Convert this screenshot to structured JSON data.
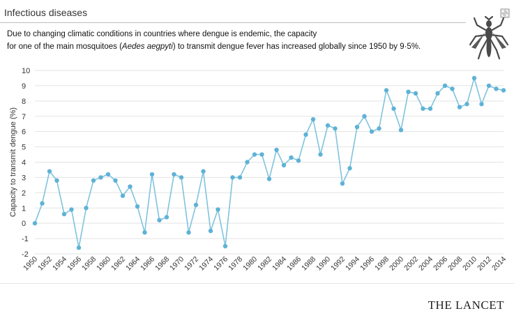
{
  "header": {
    "title": "Infectious diseases"
  },
  "description": {
    "line1": "Due to changing climatic conditions in countries where dengue is endemic, the capacity",
    "line2_prefix": "for one of the main mosquitoes (",
    "line2_species": "Aedes aegpyti",
    "line2_suffix": ") to  transmit dengue fever has increased globally since 1950 by 9·5%."
  },
  "icons": {
    "mosquito": "mosquito-icon",
    "expand": "expand-icon"
  },
  "brand": "THE LANCET",
  "colors": {
    "series": "#7fc3de",
    "marker": "#5fb2d6",
    "grid": "#e3e3e3"
  },
  "chart_data": {
    "type": "line",
    "title": "",
    "xlabel": "",
    "ylabel": "Capacity to transmit dengue (%)",
    "ylim": [
      -2,
      10
    ],
    "yticks": [
      -2,
      -1,
      0,
      1,
      2,
      3,
      4,
      5,
      6,
      7,
      8,
      9,
      10
    ],
    "xlim": [
      1950,
      2014
    ],
    "xticks": [
      1950,
      1952,
      1954,
      1956,
      1958,
      1960,
      1962,
      1964,
      1966,
      1968,
      1970,
      1972,
      1974,
      1976,
      1978,
      1980,
      1982,
      1984,
      1986,
      1988,
      1990,
      1992,
      1994,
      1996,
      1998,
      2000,
      2002,
      2004,
      2006,
      2008,
      2010,
      2012,
      2014
    ],
    "grid": "horizontal",
    "x": [
      1950,
      1951,
      1952,
      1953,
      1954,
      1955,
      1956,
      1957,
      1958,
      1959,
      1960,
      1961,
      1962,
      1963,
      1964,
      1965,
      1966,
      1967,
      1968,
      1969,
      1970,
      1971,
      1972,
      1973,
      1974,
      1975,
      1976,
      1977,
      1978,
      1979,
      1980,
      1981,
      1982,
      1983,
      1984,
      1985,
      1986,
      1987,
      1988,
      1989,
      1990,
      1991,
      1992,
      1993,
      1994,
      1995,
      1996,
      1997,
      1998,
      1999,
      2000,
      2001,
      2002,
      2003,
      2004,
      2005,
      2006,
      2007,
      2008,
      2009,
      2010,
      2011,
      2012,
      2013,
      2014
    ],
    "values": [
      0.0,
      1.3,
      3.4,
      2.8,
      0.6,
      0.9,
      -1.6,
      1.0,
      2.8,
      3.0,
      3.2,
      2.8,
      1.8,
      2.4,
      1.1,
      -0.6,
      3.2,
      0.2,
      0.4,
      3.2,
      3.0,
      -0.6,
      1.2,
      3.4,
      -0.5,
      0.9,
      -1.5,
      3.0,
      3.0,
      4.0,
      4.5,
      4.5,
      2.9,
      4.8,
      3.8,
      4.3,
      4.1,
      5.8,
      6.8,
      4.5,
      6.4,
      6.2,
      2.6,
      3.6,
      6.3,
      7.0,
      6.0,
      6.2,
      8.7,
      7.5,
      6.1,
      8.6,
      8.5,
      7.5,
      7.5,
      8.5,
      9.0,
      8.8,
      7.6,
      7.8,
      9.5,
      7.8,
      9.0,
      8.8,
      8.7
    ]
  }
}
